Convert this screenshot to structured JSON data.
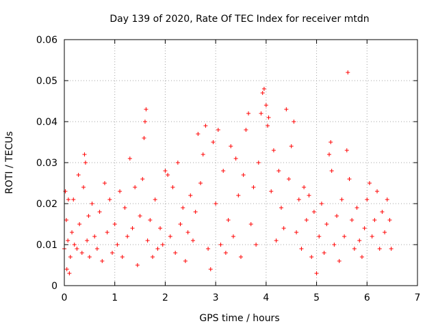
{
  "chart_data": {
    "type": "scatter",
    "title": "Day 139 of 2020, Rate Of TEC Index for receiver mtdn",
    "xlabel": "GPS time / hours",
    "ylabel": "ROTI / TECUs",
    "xlim": [
      0,
      7
    ],
    "ylim": [
      0,
      0.06
    ],
    "x_ticks": [
      "0",
      "1",
      "2",
      "3",
      "4",
      "5",
      "6",
      "7"
    ],
    "y_ticks": [
      "0",
      "0.01",
      "0.02",
      "0.03",
      "0.04",
      "0.05",
      "0.06"
    ],
    "grid": true,
    "marker": "+",
    "series_color": "#ff0000",
    "series": [
      {
        "points": [
          [
            0.0,
            0.009
          ],
          [
            0.02,
            0.023
          ],
          [
            0.04,
            0.016
          ],
          [
            0.05,
            0.004
          ],
          [
            0.07,
            0.011
          ],
          [
            0.08,
            0.021
          ],
          [
            0.1,
            0.003
          ],
          [
            0.12,
            0.007
          ],
          [
            0.15,
            0.013
          ],
          [
            0.18,
            0.021
          ],
          [
            0.2,
            0.01
          ],
          [
            0.25,
            0.009
          ],
          [
            0.28,
            0.027
          ],
          [
            0.3,
            0.015
          ],
          [
            0.35,
            0.008
          ],
          [
            0.38,
            0.024
          ],
          [
            0.4,
            0.032
          ],
          [
            0.42,
            0.03
          ],
          [
            0.45,
            0.011
          ],
          [
            0.48,
            0.017
          ],
          [
            0.5,
            0.007
          ],
          [
            0.55,
            0.02
          ],
          [
            0.6,
            0.012
          ],
          [
            0.65,
            0.009
          ],
          [
            0.7,
            0.018
          ],
          [
            0.75,
            0.006
          ],
          [
            0.8,
            0.025
          ],
          [
            0.85,
            0.013
          ],
          [
            0.9,
            0.021
          ],
          [
            0.95,
            0.008
          ],
          [
            1.0,
            0.015
          ],
          [
            1.05,
            0.01
          ],
          [
            1.1,
            0.023
          ],
          [
            1.15,
            0.007
          ],
          [
            1.2,
            0.019
          ],
          [
            1.25,
            0.012
          ],
          [
            1.3,
            0.031
          ],
          [
            1.35,
            0.014
          ],
          [
            1.4,
            0.024
          ],
          [
            1.45,
            0.005
          ],
          [
            1.5,
            0.017
          ],
          [
            1.55,
            0.026
          ],
          [
            1.58,
            0.036
          ],
          [
            1.6,
            0.04
          ],
          [
            1.62,
            0.043
          ],
          [
            1.65,
            0.011
          ],
          [
            1.7,
            0.016
          ],
          [
            1.75,
            0.007
          ],
          [
            1.8,
            0.021
          ],
          [
            1.85,
            0.009
          ],
          [
            1.9,
            0.014
          ],
          [
            1.95,
            0.01
          ],
          [
            2.0,
            0.028
          ],
          [
            2.05,
            0.027
          ],
          [
            2.1,
            0.012
          ],
          [
            2.15,
            0.024
          ],
          [
            2.2,
            0.008
          ],
          [
            2.25,
            0.03
          ],
          [
            2.3,
            0.015
          ],
          [
            2.35,
            0.019
          ],
          [
            2.4,
            0.006
          ],
          [
            2.45,
            0.013
          ],
          [
            2.5,
            0.022
          ],
          [
            2.55,
            0.011
          ],
          [
            2.6,
            0.018
          ],
          [
            2.65,
            0.037
          ],
          [
            2.7,
            0.025
          ],
          [
            2.75,
            0.032
          ],
          [
            2.8,
            0.039
          ],
          [
            2.85,
            0.009
          ],
          [
            2.9,
            0.004
          ],
          [
            2.95,
            0.035
          ],
          [
            3.0,
            0.02
          ],
          [
            3.05,
            0.038
          ],
          [
            3.1,
            0.01
          ],
          [
            3.15,
            0.028
          ],
          [
            3.2,
            0.008
          ],
          [
            3.25,
            0.016
          ],
          [
            3.3,
            0.034
          ],
          [
            3.35,
            0.012
          ],
          [
            3.4,
            0.031
          ],
          [
            3.45,
            0.022
          ],
          [
            3.5,
            0.007
          ],
          [
            3.55,
            0.027
          ],
          [
            3.6,
            0.038
          ],
          [
            3.65,
            0.042
          ],
          [
            3.7,
            0.015
          ],
          [
            3.75,
            0.024
          ],
          [
            3.8,
            0.01
          ],
          [
            3.85,
            0.03
          ],
          [
            3.9,
            0.042
          ],
          [
            3.93,
            0.047
          ],
          [
            3.96,
            0.048
          ],
          [
            4.0,
            0.044
          ],
          [
            4.03,
            0.039
          ],
          [
            4.05,
            0.041
          ],
          [
            4.1,
            0.023
          ],
          [
            4.15,
            0.033
          ],
          [
            4.2,
            0.011
          ],
          [
            4.25,
            0.028
          ],
          [
            4.3,
            0.019
          ],
          [
            4.35,
            0.014
          ],
          [
            4.4,
            0.043
          ],
          [
            4.45,
            0.026
          ],
          [
            4.5,
            0.034
          ],
          [
            4.55,
            0.04
          ],
          [
            4.6,
            0.013
          ],
          [
            4.65,
            0.021
          ],
          [
            4.7,
            0.009
          ],
          [
            4.75,
            0.024
          ],
          [
            4.8,
            0.016
          ],
          [
            4.85,
            0.022
          ],
          [
            4.9,
            0.007
          ],
          [
            4.95,
            0.018
          ],
          [
            5.0,
            0.003
          ],
          [
            5.05,
            0.012
          ],
          [
            5.1,
            0.02
          ],
          [
            5.15,
            0.008
          ],
          [
            5.2,
            0.015
          ],
          [
            5.25,
            0.032
          ],
          [
            5.28,
            0.035
          ],
          [
            5.3,
            0.028
          ],
          [
            5.35,
            0.01
          ],
          [
            5.4,
            0.017
          ],
          [
            5.45,
            0.006
          ],
          [
            5.5,
            0.021
          ],
          [
            5.55,
            0.012
          ],
          [
            5.6,
            0.033
          ],
          [
            5.62,
            0.052
          ],
          [
            5.65,
            0.026
          ],
          [
            5.7,
            0.016
          ],
          [
            5.75,
            0.009
          ],
          [
            5.8,
            0.019
          ],
          [
            5.85,
            0.011
          ],
          [
            5.9,
            0.007
          ],
          [
            5.95,
            0.014
          ],
          [
            6.0,
            0.021
          ],
          [
            6.05,
            0.025
          ],
          [
            6.1,
            0.012
          ],
          [
            6.15,
            0.016
          ],
          [
            6.2,
            0.023
          ],
          [
            6.25,
            0.009
          ],
          [
            6.3,
            0.018
          ],
          [
            6.35,
            0.013
          ],
          [
            6.4,
            0.021
          ],
          [
            6.45,
            0.016
          ],
          [
            6.48,
            0.009
          ]
        ]
      }
    ]
  }
}
